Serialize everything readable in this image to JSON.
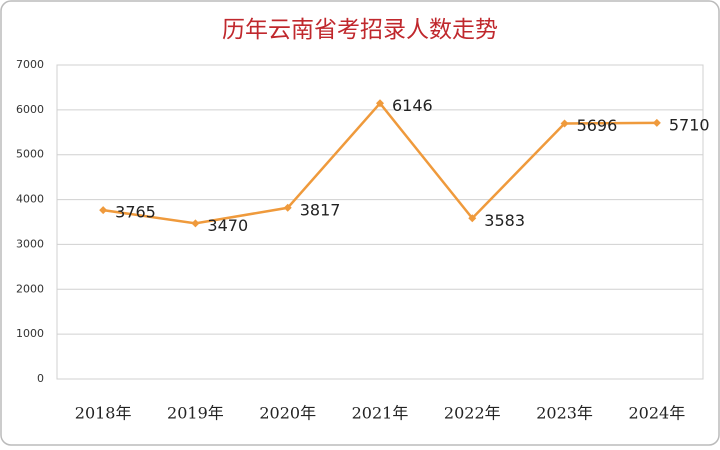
{
  "chart_data": {
    "type": "line",
    "title": "历年云南省考招录人数走势",
    "categories": [
      "2018年",
      "2019年",
      "2020年",
      "2021年",
      "2022年",
      "2023年",
      "2024年"
    ],
    "values": [
      3765,
      3470,
      3817,
      6146,
      3583,
      5696,
      5710
    ],
    "color": "#ef9a3c",
    "ylim": [
      0,
      7000
    ],
    "yticks": [
      0,
      1000,
      2000,
      3000,
      4000,
      5000,
      6000,
      7000
    ],
    "grid": true
  }
}
